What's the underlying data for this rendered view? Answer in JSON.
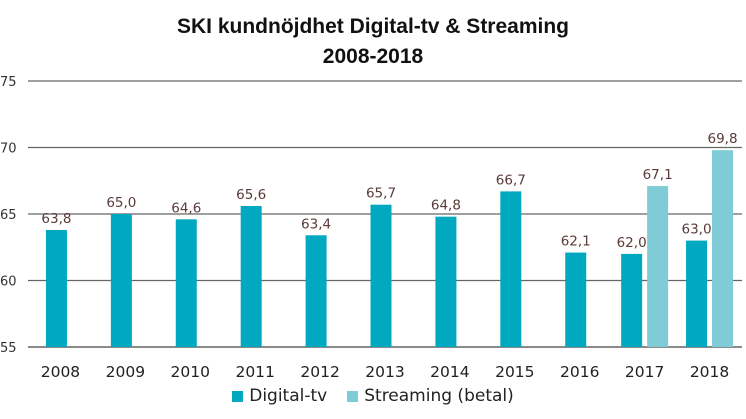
{
  "chart_data": {
    "type": "bar",
    "title": "SKI kundnöjdhet Digital-tv & Streaming",
    "subtitle": "2008-2018",
    "xlabel": "",
    "ylabel": "",
    "ylim": [
      55,
      75
    ],
    "yticks": [
      55,
      60,
      65,
      70,
      75
    ],
    "ytick_labels": [
      "55",
      "60",
      "65",
      "70",
      "75"
    ],
    "grid": true,
    "legend_position": "bottom",
    "categories": [
      "2008",
      "2009",
      "2010",
      "2011",
      "2012",
      "2013",
      "2014",
      "2015",
      "2016",
      "2017",
      "2018"
    ],
    "series": [
      {
        "name": "Digital-tv",
        "color": "#00A9C0",
        "values": [
          63.8,
          65.0,
          64.6,
          65.6,
          63.4,
          65.7,
          64.8,
          66.7,
          62.1,
          62.0,
          63.0
        ],
        "labels": [
          "63,8",
          "65,0",
          "64,6",
          "65,6",
          "63,4",
          "65,7",
          "64,8",
          "66,7",
          "62,1",
          "62,0",
          "63,0"
        ]
      },
      {
        "name": "Streaming (betal)",
        "color": "#7FCBD6",
        "values": [
          null,
          null,
          null,
          null,
          null,
          null,
          null,
          null,
          null,
          67.1,
          69.8
        ],
        "labels": [
          "",
          "",
          "",
          "",
          "",
          "",
          "",
          "",
          "",
          "67,1",
          "69,8"
        ]
      }
    ]
  }
}
